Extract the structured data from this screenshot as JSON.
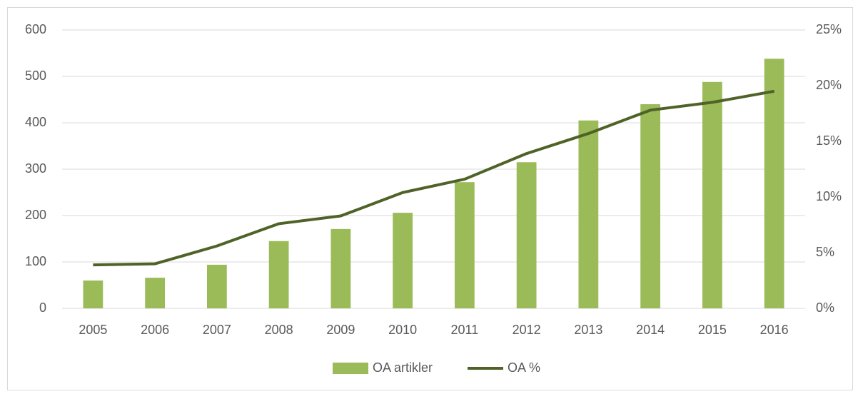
{
  "chart_data": {
    "type": "bar_line",
    "categories": [
      "2005",
      "2006",
      "2007",
      "2008",
      "2009",
      "2010",
      "2011",
      "2012",
      "2013",
      "2014",
      "2015",
      "2016"
    ],
    "series": [
      {
        "name": "OA artikler",
        "type": "bar",
        "color": "#9bbb59",
        "values": [
          60,
          66,
          94,
          145,
          171,
          206,
          272,
          315,
          405,
          440,
          488,
          538
        ]
      },
      {
        "name": "OA %",
        "type": "line",
        "axis": "y2",
        "color": "#4f6228",
        "values": [
          3.9,
          4.0,
          5.6,
          7.6,
          8.3,
          10.4,
          11.6,
          13.9,
          15.7,
          17.8,
          18.5,
          19.5
        ]
      }
    ],
    "ylim": [
      0,
      600
    ],
    "yticks": [
      0,
      100,
      200,
      300,
      400,
      500,
      600
    ],
    "y2lim": [
      0,
      25
    ],
    "y2ticks": [
      {
        "value": 0,
        "label": "0%"
      },
      {
        "value": 5,
        "label": "5%"
      },
      {
        "value": 10,
        "label": "10%"
      },
      {
        "value": 15,
        "label": "15%"
      },
      {
        "value": 20,
        "label": "20%"
      },
      {
        "value": 25,
        "label": "25%"
      }
    ],
    "grid": true,
    "legend": "bottom"
  }
}
